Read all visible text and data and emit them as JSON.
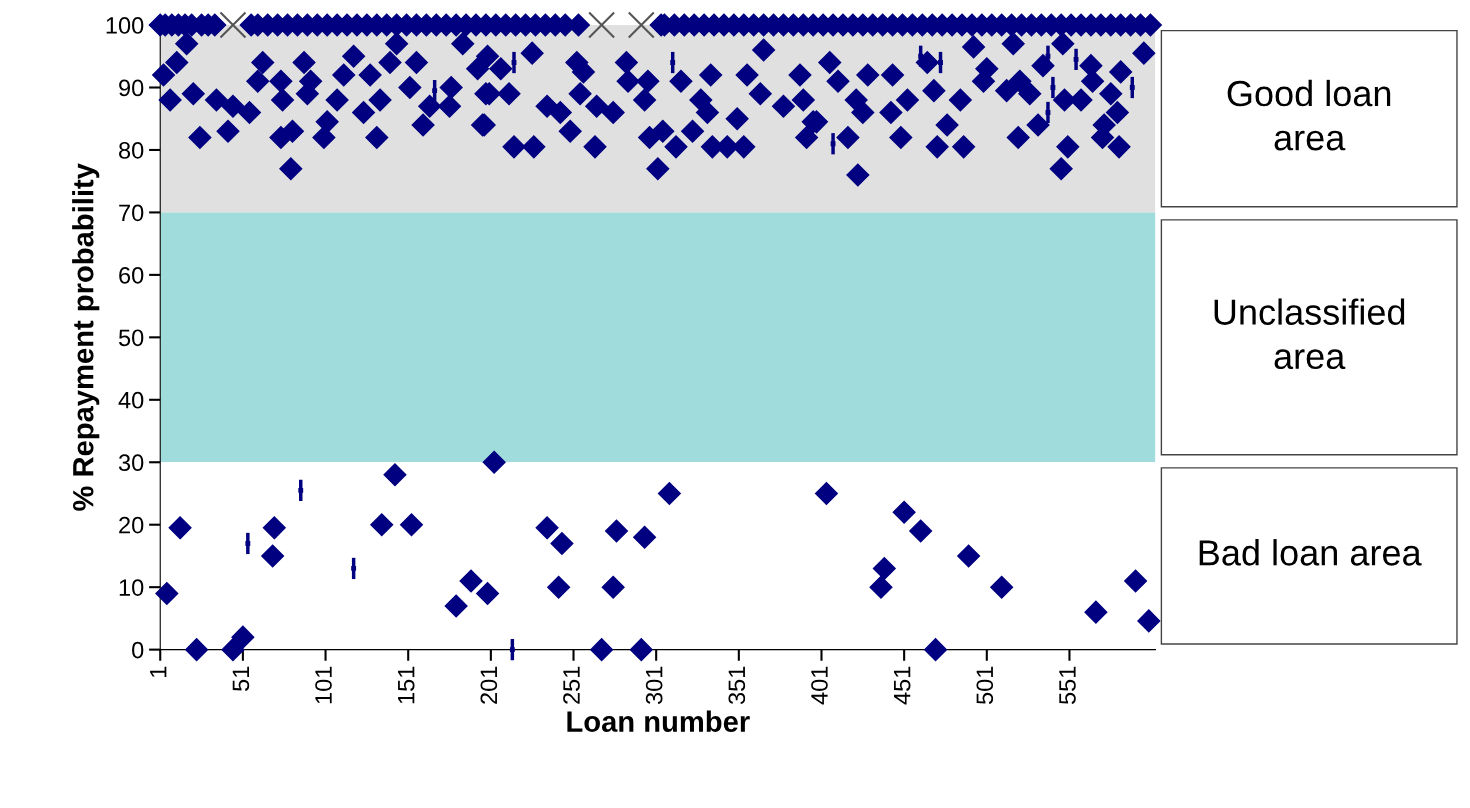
{
  "chart_data": {
    "type": "scatter",
    "xlabel": "Loan number",
    "ylabel": "% Repayment probability",
    "xlim": [
      1,
      603
    ],
    "xticks": [
      1,
      51,
      101,
      151,
      201,
      251,
      301,
      351,
      401,
      451,
      501,
      551
    ],
    "ylim": [
      0,
      100
    ],
    "yticks": [
      0,
      10,
      20,
      30,
      40,
      50,
      60,
      70,
      80,
      90,
      100
    ],
    "grid": false,
    "legend": false,
    "bands": [
      {
        "axis": "y",
        "from": 70,
        "to": 100,
        "label": "Good loan\narea",
        "color": "#e0e0e0"
      },
      {
        "axis": "y",
        "from": 30,
        "to": 70,
        "label": "Unclassified\narea",
        "color": "#a0dcdc"
      },
      {
        "axis": "y",
        "from": 0,
        "to": 30,
        "label": "Bad loan area",
        "color": "#ffffff"
      }
    ],
    "series": [
      {
        "color": "#000080",
        "marker": "diamond",
        "x": [
          1,
          4,
          8,
          12,
          16,
          20,
          26,
          30,
          34,
          56,
          60,
          66,
          72,
          78,
          84,
          90,
          96,
          102,
          108,
          114,
          120,
          126,
          132,
          138,
          144,
          150,
          156,
          162,
          168,
          174,
          180,
          186,
          192,
          198,
          204,
          210,
          216,
          222,
          228,
          234,
          240,
          246,
          254,
          304,
          306,
          312,
          318,
          324,
          330,
          336,
          342,
          348,
          354,
          360,
          366,
          372,
          378,
          384,
          390,
          396,
          402,
          408,
          414,
          420,
          426,
          432,
          438,
          444,
          450,
          456,
          462,
          468,
          474,
          480,
          486,
          492,
          498,
          504,
          510,
          516,
          522,
          528,
          534,
          540,
          546,
          552,
          558,
          564,
          570,
          576,
          582,
          588,
          594,
          600,
          3,
          7,
          17,
          11,
          25,
          42,
          21,
          35,
          45,
          55,
          60,
          63,
          74,
          75,
          74,
          81,
          80,
          88,
          92,
          90,
          100,
          102,
          108,
          112,
          118,
          124,
          128,
          132,
          134,
          144,
          140,
          152,
          156,
          160,
          164,
          176,
          177,
          184,
          193,
          196,
          198,
          199,
          207,
          200,
          212,
          197,
          215,
          227,
          226,
          235,
          243,
          249,
          253,
          257,
          255,
          265,
          275,
          264,
          283,
          284,
          296,
          294,
          297,
          305,
          313,
          302,
          316,
          334,
          328,
          332,
          323,
          335,
          344,
          354,
          350,
          356,
          366,
          364,
          378,
          390,
          388,
          396,
          392,
          406,
          411,
          398,
          417,
          423,
          422,
          426,
          429,
          443,
          444,
          449,
          453,
          465,
          469,
          477,
          471,
          487,
          485,
          493,
          501,
          499,
          513,
          521,
          527,
          520,
          532,
          517,
          535,
          547,
          548,
          558,
          550,
          546,
          564,
          565,
          576,
          580,
          572,
          571,
          581,
          582,
          596,
          5,
          13,
          23,
          45,
          51,
          70,
          69,
          143,
          135,
          153,
          180,
          189,
          199,
          203,
          235,
          244,
          242,
          268,
          275,
          277,
          292,
          294,
          309,
          404,
          451,
          461,
          439,
          437,
          470,
          490,
          510,
          567,
          591,
          599
        ],
        "values": [
          100,
          100,
          100,
          100,
          100,
          100,
          100,
          100,
          100,
          100,
          100,
          100,
          100,
          100,
          100,
          100,
          100,
          100,
          100,
          100,
          100,
          100,
          100,
          100,
          100,
          100,
          100,
          100,
          100,
          100,
          100,
          100,
          100,
          100,
          100,
          100,
          100,
          100,
          100,
          100,
          100,
          100,
          100,
          100,
          100,
          100,
          100,
          100,
          100,
          100,
          100,
          100,
          100,
          100,
          100,
          100,
          100,
          100,
          100,
          100,
          100,
          100,
          100,
          100,
          100,
          100,
          100,
          100,
          100,
          100,
          100,
          100,
          100,
          100,
          100,
          100,
          100,
          100,
          100,
          100,
          100,
          100,
          100,
          100,
          100,
          100,
          100,
          100,
          100,
          100,
          100,
          100,
          100,
          100,
          92,
          88,
          97,
          94,
          82,
          83,
          89,
          88,
          87,
          86,
          91,
          94,
          91,
          88,
          82,
          83,
          77,
          94,
          91,
          89,
          82,
          84.5,
          88,
          92,
          95,
          86,
          92,
          82,
          88,
          97,
          94,
          90,
          94,
          84,
          87,
          87,
          90,
          97,
          93,
          84,
          89,
          95,
          93,
          89,
          89,
          84,
          80.5,
          80.5,
          95.5,
          87,
          86,
          83,
          94,
          92.5,
          89,
          87,
          86,
          80.5,
          94,
          91,
          91,
          88,
          82,
          83,
          80.5,
          77,
          91,
          92,
          88,
          86,
          83,
          80.5,
          80.5,
          80.5,
          85,
          92,
          96,
          89,
          87,
          88,
          92,
          84.5,
          82,
          94,
          91,
          84.5,
          82,
          76,
          88,
          86,
          92,
          86,
          92,
          82,
          88,
          94,
          89.5,
          84,
          80.5,
          80.5,
          88,
          96.5,
          93,
          91,
          89.5,
          91,
          89,
          82,
          84,
          97,
          93.5,
          97,
          88,
          88,
          80.5,
          77,
          93.5,
          91,
          89,
          86,
          84,
          82,
          80.5,
          92.5,
          95.5,
          9,
          19.5,
          0,
          0,
          2,
          19.5,
          15,
          28,
          20,
          20,
          7,
          11,
          9,
          30,
          19.5,
          17,
          10,
          0,
          10,
          19,
          0,
          18,
          25,
          25,
          22,
          19,
          13,
          10,
          0,
          15,
          10,
          6,
          11,
          4.6
        ]
      },
      {
        "color": "#000080",
        "marker": "square",
        "errors": [
          1.7,
          1.7,
          1.7,
          1.7,
          1.7,
          1.7,
          1.7,
          1.7,
          1.7,
          1.7,
          1.7,
          1.7,
          1.7,
          1.7,
          1.7
        ],
        "x": [
          86,
          54,
          118,
          214,
          167,
          215,
          311,
          461,
          473,
          538,
          555,
          589,
          541,
          538,
          408
        ],
        "values": [
          25.5,
          17,
          13,
          0,
          89.5,
          94,
          94,
          95,
          94,
          95,
          94.5,
          90,
          90,
          86,
          81
        ]
      },
      {
        "color": "#555555",
        "marker": "cross",
        "x": [
          45,
          268,
          292
        ],
        "values": [
          100,
          100,
          100
        ]
      }
    ]
  }
}
